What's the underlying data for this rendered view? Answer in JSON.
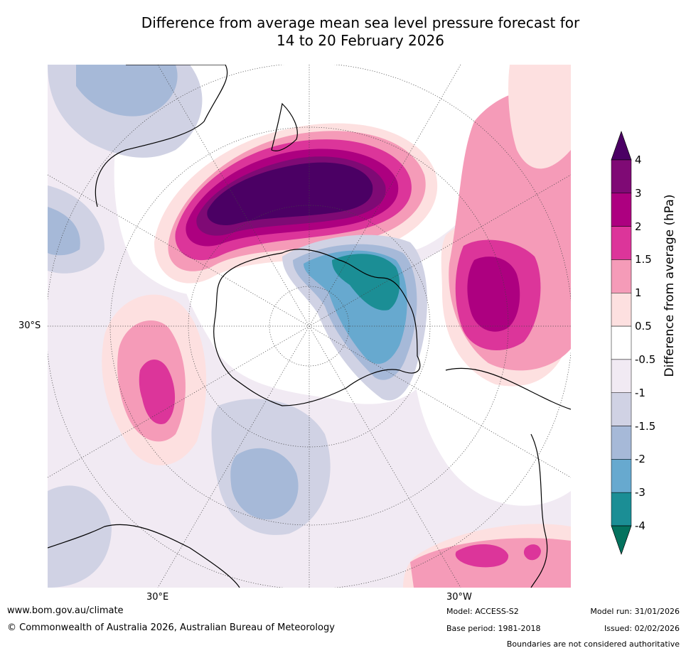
{
  "title_line1": "Difference from average mean sea level pressure forecast for",
  "title_line2": "14 to 20 February 2026",
  "map": {
    "projection": "south-polar-stereographic",
    "lat_label": "30°S",
    "lon_label_east": "30°E",
    "lon_label_west": "30°W",
    "features": [
      {
        "name": "positive-anomaly-new-zealand",
        "max_hpa": 4,
        "description_region": "Tasman Sea / New Zealand"
      },
      {
        "name": "positive-anomaly-south-atlantic",
        "max_hpa": 3
      },
      {
        "name": "positive-anomaly-southern-indian-ocean",
        "max_hpa": 2
      },
      {
        "name": "negative-anomaly-weddell-sea",
        "min_hpa": -3
      },
      {
        "name": "negative-anomaly-southern-ocean-south-of-africa",
        "min_hpa": -1.5
      }
    ]
  },
  "colorbar": {
    "title": "Difference from average (hPa)",
    "ticks": [
      "4",
      "3",
      "2",
      "1.5",
      "1",
      "0.5",
      "-0.5",
      "-1",
      "-1.5",
      "-2",
      "-3",
      "-4"
    ],
    "colors": [
      "#4b0064",
      "#7f0a75",
      "#ad0080",
      "#dc359a",
      "#f59bb8",
      "#fde0e0",
      "#ffffff",
      "#f1eaf3",
      "#d0d2e4",
      "#a6b9d8",
      "#67a9cf",
      "#1b8e95",
      "#04725e"
    ]
  },
  "footer": {
    "url": "www.bom.gov.au/climate",
    "copyright": "© Commonwealth of Australia 2026, Australian Bureau of Meteorology",
    "model": "Model: ACCESS-S2",
    "base_period": "Base period: 1981-2018",
    "model_run": "Model run: 31/01/2026",
    "issued": "Issued: 02/02/2026",
    "disclaimer": "Boundaries are not considered authoritative"
  }
}
